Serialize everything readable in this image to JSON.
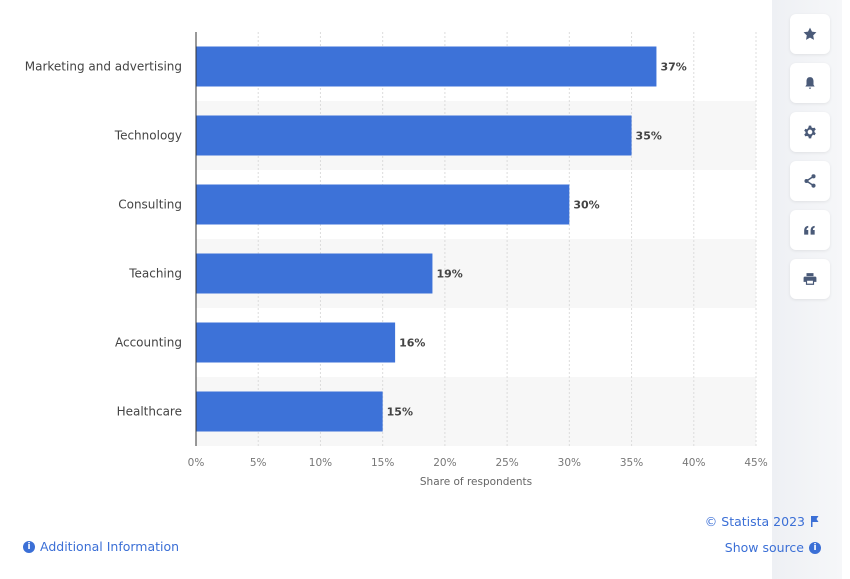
{
  "chart_data": {
    "type": "bar",
    "orientation": "horizontal",
    "categories": [
      "Marketing and advertising",
      "Technology",
      "Consulting",
      "Teaching",
      "Accounting",
      "Healthcare"
    ],
    "values": [
      37,
      35,
      30,
      19,
      16,
      15
    ],
    "data_labels": [
      "37%",
      "35%",
      "30%",
      "19%",
      "16%",
      "15%"
    ],
    "xlabel": "Share of respondents",
    "xlim": [
      0,
      45
    ],
    "xticks": [
      "0%",
      "5%",
      "10%",
      "15%",
      "20%",
      "25%",
      "30%",
      "35%",
      "40%",
      "45%"
    ],
    "grid": true,
    "bar_color": "#3d72d8"
  },
  "footer": {
    "copyright": "© Statista 2023",
    "additional_info": "Additional Information",
    "show_source": "Show source"
  },
  "sidebar": {
    "buttons": [
      "star-icon",
      "bell-icon",
      "gear-icon",
      "share-icon",
      "quote-icon",
      "print-icon"
    ]
  }
}
